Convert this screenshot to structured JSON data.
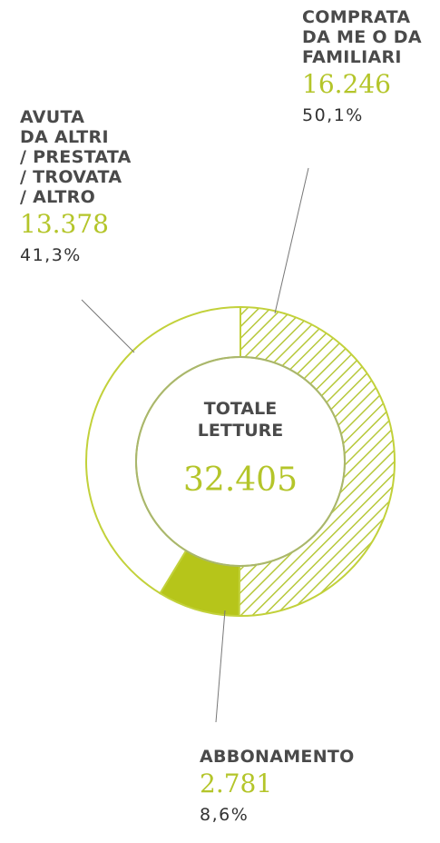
{
  "chart_data": {
    "type": "donut",
    "categories": [
      "COMPRATA\nDA ME O DA\nFAMILIARI",
      "ABBONAMENTO",
      "AVUTA\nDA ALTRI\n/ PRESTATA\n/ TROVATA\n/ ALTRO"
    ],
    "values": [
      16246,
      2781,
      13378
    ],
    "value_labels": [
      "16.246",
      "2.781",
      "13.378"
    ],
    "percentages": [
      50.1,
      8.6,
      41.3
    ],
    "percentage_labels": [
      "50,1%",
      "8,6%",
      "41,3%"
    ],
    "colors": [
      "#b7c83a",
      "#b6c51a",
      "#ffffff"
    ],
    "hatch": [
      true,
      false,
      false
    ],
    "center_title": "TOTALE\nLETTURE",
    "total": 32405,
    "total_label": "32.405"
  }
}
